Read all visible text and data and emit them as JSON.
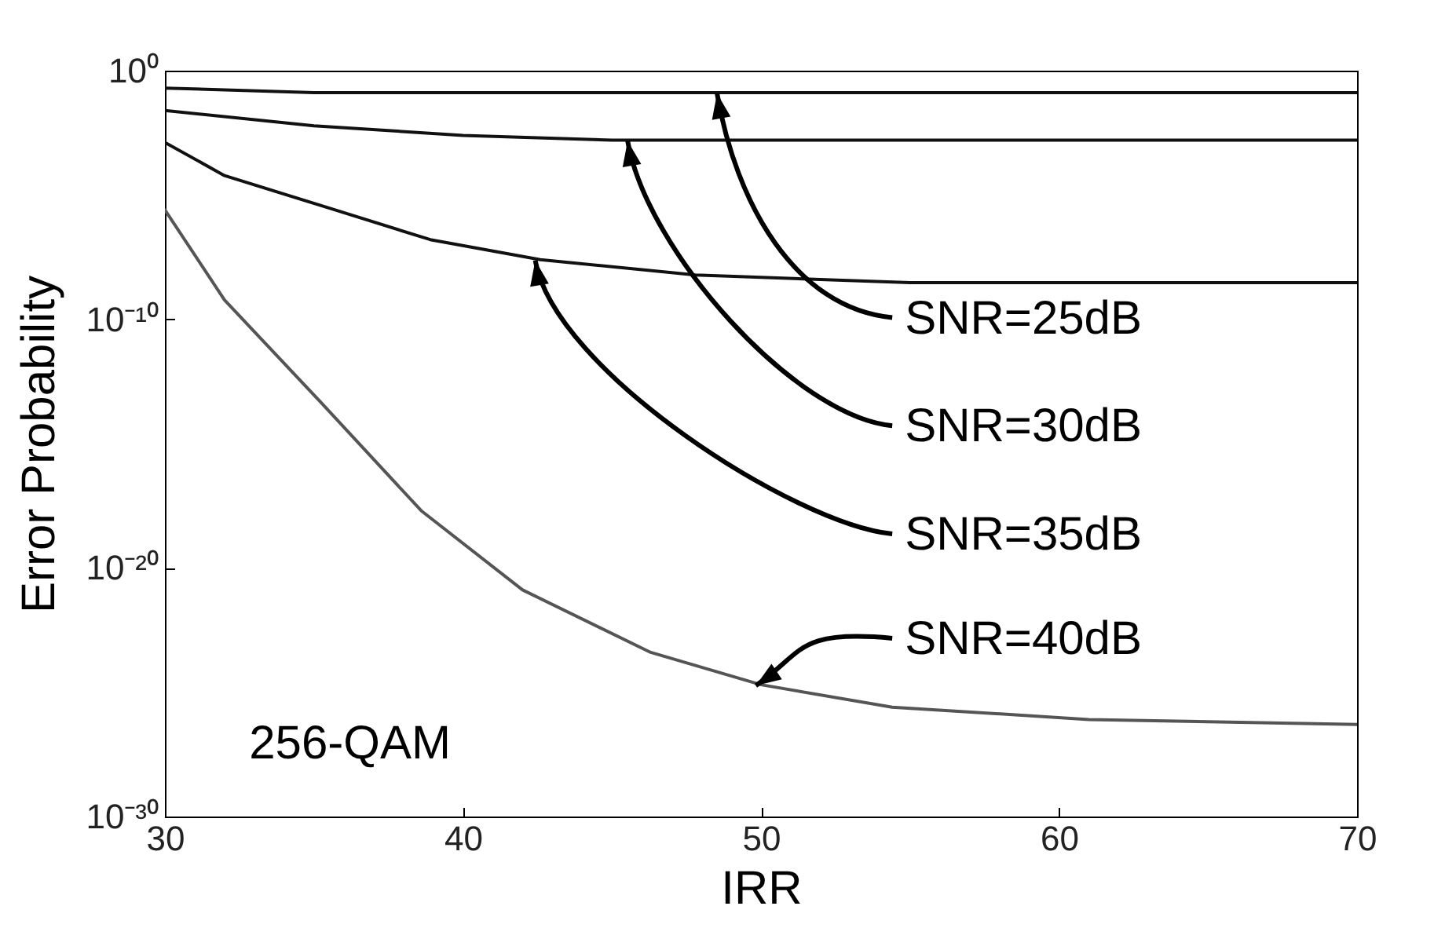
{
  "chart_data": {
    "type": "line",
    "xlabel": "IRR",
    "ylabel": "Error Probability",
    "log": "y",
    "grid": false,
    "legend": false,
    "line_style": "solid",
    "marker": "none",
    "xlim": [
      30,
      70
    ],
    "xticks": [
      30,
      40,
      50,
      60,
      70
    ],
    "ylim": [
      1e-30,
      1
    ],
    "yticks": [
      {
        "value": 1,
        "label": "10⁰"
      },
      {
        "value": 1e-10,
        "label": "10⁻¹⁰"
      },
      {
        "value": 1e-20,
        "label": "10⁻²⁰"
      },
      {
        "value": 1e-30,
        "label": "10⁻³⁰"
      }
    ],
    "series": [
      {
        "color": "#111111",
        "x": [
          30,
          35,
          40,
          50,
          60,
          70
        ],
        "values": [
          0.2,
          0.13,
          0.13,
          0.13,
          0.13,
          0.13
        ]
      },
      {
        "color": "#111111",
        "x": [
          30,
          35,
          40,
          45,
          50,
          60,
          70
        ],
        "values": [
          0.025,
          0.006,
          0.0025,
          0.0016,
          0.0016,
          0.0016,
          0.0016
        ]
      },
      {
        "color": "#111111",
        "x": [
          30,
          32,
          35.5,
          38.9,
          42.6,
          47.8,
          55,
          60,
          70
        ],
        "values": [
          0.0013,
          6e-05,
          3e-06,
          1.6e-07,
          2.5e-08,
          6e-09,
          3e-09,
          3e-09,
          3e-09
        ]
      },
      {
        "color": "#555555",
        "x": [
          30,
          32,
          35.2,
          38.6,
          42,
          46.3,
          50,
          54.4,
          61,
          70
        ],
        "values": [
          2.5e-06,
          6e-10,
          5e-14,
          2e-18,
          1.3e-21,
          4e-24,
          2e-25,
          2.5e-26,
          8e-27,
          5e-27
        ]
      }
    ],
    "annotations": [
      {
        "text": "SNR=25dB",
        "x": 48.5,
        "y": 0.13
      },
      {
        "text": "SNR=30dB",
        "x": 45.5,
        "y": 0.0016
      },
      {
        "text": "SNR=35dB",
        "x": 42.4,
        "y": 2.5e-08
      },
      {
        "text": "SNR=40dB",
        "x": 49.8,
        "y": 2e-25
      },
      "256-QAM"
    ]
  }
}
